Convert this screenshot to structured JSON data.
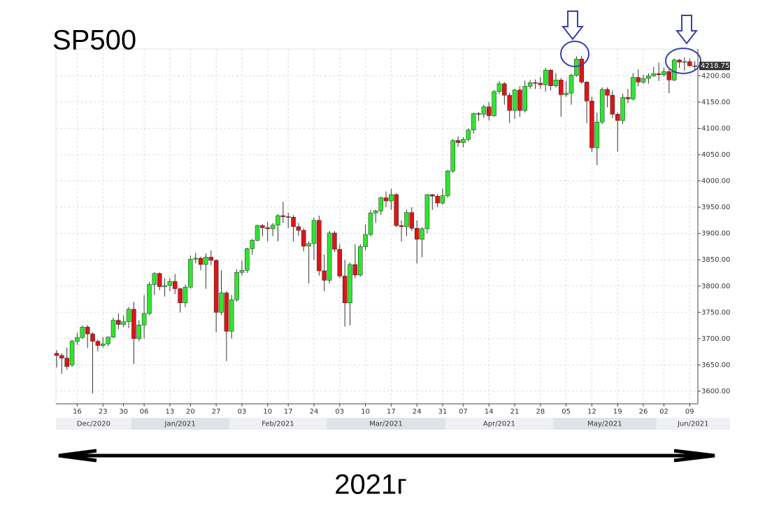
{
  "chart_data": {
    "type": "candlestick",
    "title": "SP500",
    "footer": "2021г",
    "x": [
      "2020-12-10",
      "2020-12-11",
      "2020-12-14",
      "2020-12-15",
      "2020-12-16",
      "2020-12-17",
      "2020-12-18",
      "2020-12-21",
      "2020-12-22",
      "2020-12-23",
      "2020-12-24",
      "2020-12-28",
      "2020-12-29",
      "2020-12-30",
      "2020-12-31",
      "2021-01-04",
      "2021-01-05",
      "2021-01-06",
      "2021-01-07",
      "2021-01-08",
      "2021-01-11",
      "2021-01-12",
      "2021-01-13",
      "2021-01-14",
      "2021-01-15",
      "2021-01-19",
      "2021-01-20",
      "2021-01-21",
      "2021-01-22",
      "2021-01-25",
      "2021-01-26",
      "2021-01-27",
      "2021-01-28",
      "2021-01-29",
      "2021-02-01",
      "2021-02-02",
      "2021-02-03",
      "2021-02-04",
      "2021-02-05",
      "2021-02-08",
      "2021-02-09",
      "2021-02-10",
      "2021-02-11",
      "2021-02-12",
      "2021-02-16",
      "2021-02-17",
      "2021-02-18",
      "2021-02-19",
      "2021-02-22",
      "2021-02-23",
      "2021-02-24",
      "2021-02-25",
      "2021-02-26",
      "2021-03-01",
      "2021-03-02",
      "2021-03-03",
      "2021-03-04",
      "2021-03-05",
      "2021-03-08",
      "2021-03-09",
      "2021-03-10",
      "2021-03-11",
      "2021-03-12",
      "2021-03-15",
      "2021-03-16",
      "2021-03-17",
      "2021-03-18",
      "2021-03-19",
      "2021-03-22",
      "2021-03-23",
      "2021-03-24",
      "2021-03-25",
      "2021-03-26",
      "2021-03-29",
      "2021-03-30",
      "2021-03-31",
      "2021-04-01",
      "2021-04-05",
      "2021-04-06",
      "2021-04-07",
      "2021-04-08",
      "2021-04-09",
      "2021-04-12",
      "2021-04-13",
      "2021-04-14",
      "2021-04-15",
      "2021-04-16",
      "2021-04-19",
      "2021-04-20",
      "2021-04-21",
      "2021-04-22",
      "2021-04-23",
      "2021-04-26",
      "2021-04-27",
      "2021-04-28",
      "2021-04-29",
      "2021-04-30",
      "2021-05-03",
      "2021-05-04",
      "2021-05-05",
      "2021-05-06",
      "2021-05-07",
      "2021-05-10",
      "2021-05-11",
      "2021-05-12",
      "2021-05-13",
      "2021-05-14",
      "2021-05-17",
      "2021-05-18",
      "2021-05-19",
      "2021-05-20",
      "2021-05-21",
      "2021-05-24",
      "2021-05-25",
      "2021-05-26",
      "2021-05-27",
      "2021-05-28",
      "2021-06-01",
      "2021-06-02",
      "2021-06-03",
      "2021-06-04",
      "2021-06-07",
      "2021-06-08",
      "2021-06-09",
      "2021-06-10"
    ],
    "open": [
      3672,
      3668,
      3663,
      3650,
      3695,
      3702,
      3722,
      3709,
      3695,
      3687,
      3690,
      3703,
      3735,
      3727,
      3732,
      3756,
      3700,
      3726,
      3748,
      3803,
      3824,
      3799,
      3801,
      3809,
      3795,
      3768,
      3798,
      3851,
      3853,
      3841,
      3855,
      3849,
      3750,
      3787,
      3714,
      3774,
      3826,
      3830,
      3871,
      3887,
      3915,
      3911,
      3909,
      3916,
      3934,
      3932,
      3931,
      3913,
      3906,
      3876,
      3881,
      3925,
      3829,
      3811,
      3901,
      3870,
      3819,
      3768,
      3841,
      3821,
      3875,
      3898,
      3939,
      3943,
      3968,
      3962,
      3974,
      3915,
      3913,
      3940,
      3910,
      3889,
      3909,
      3974,
      3971,
      3958,
      3972,
      4019,
      4077,
      4073,
      4079,
      4097,
      4128,
      4127,
      4141,
      4124,
      4170,
      4185,
      4163,
      4134,
      4173,
      4134,
      4180,
      4187,
      4186,
      4183,
      4211,
      4181,
      4192,
      4164,
      4167,
      4201,
      4232,
      4188,
      4152,
      4063,
      4112,
      4174,
      4163,
      4127,
      4115,
      4159,
      4156,
      4197,
      4188,
      4195,
      4200,
      4204,
      4202,
      4208,
      4192,
      4230,
      4226,
      4227,
      4219
    ],
    "high": [
      3678,
      3672,
      3683,
      3698,
      3711,
      3725,
      3726,
      3712,
      3698,
      3703,
      3704,
      3740,
      3748,
      3744,
      3760,
      3770,
      3735,
      3783,
      3808,
      3826,
      3826,
      3815,
      3815,
      3823,
      3797,
      3803,
      3858,
      3863,
      3856,
      3862,
      3868,
      3851,
      3830,
      3790,
      3783,
      3832,
      3848,
      3873,
      3890,
      3917,
      3918,
      3922,
      3920,
      3937,
      3960,
      3940,
      3935,
      3920,
      3910,
      3885,
      3930,
      3934,
      3860,
      3905,
      3905,
      3880,
      3850,
      3845,
      3880,
      3880,
      3917,
      3945,
      3945,
      3970,
      3980,
      3985,
      3977,
      3925,
      3945,
      3950,
      3925,
      3912,
      3975,
      3975,
      3975,
      3985,
      4021,
      4080,
      4085,
      4083,
      4100,
      4130,
      4131,
      4145,
      4150,
      4173,
      4190,
      4188,
      4168,
      4175,
      4180,
      4191,
      4192,
      4193,
      4198,
      4215,
      4212,
      4205,
      4196,
      4190,
      4204,
      4237,
      4238,
      4190,
      4160,
      4130,
      4178,
      4178,
      4172,
      4130,
      4166,
      4175,
      4205,
      4212,
      4202,
      4205,
      4217,
      4225,
      4215,
      4212,
      4233,
      4232,
      4235,
      4233,
      4228
    ],
    "low": [
      3645,
      3633,
      3641,
      3646,
      3688,
      3700,
      3682,
      3596,
      3676,
      3683,
      3686,
      3701,
      3718,
      3722,
      3720,
      3652,
      3695,
      3700,
      3745,
      3783,
      3792,
      3780,
      3790,
      3785,
      3750,
      3760,
      3795,
      3843,
      3830,
      3795,
      3840,
      3712,
      3745,
      3657,
      3700,
      3770,
      3820,
      3825,
      3860,
      3885,
      3895,
      3885,
      3895,
      3885,
      3920,
      3910,
      3885,
      3896,
      3866,
      3805,
      3850,
      3820,
      3790,
      3805,
      3865,
      3815,
      3723,
      3725,
      3815,
      3818,
      3868,
      3895,
      3920,
      3935,
      3950,
      3945,
      3912,
      3885,
      3895,
      3905,
      3843,
      3855,
      3900,
      3945,
      3950,
      3955,
      3968,
      4015,
      4065,
      4064,
      4075,
      4090,
      4114,
      4120,
      4115,
      4122,
      4165,
      4145,
      4110,
      4118,
      4122,
      4130,
      4175,
      4175,
      4175,
      4170,
      4172,
      4178,
      4122,
      4160,
      4145,
      4198,
      4185,
      4110,
      4055,
      4030,
      4108,
      4140,
      4120,
      4056,
      4108,
      4148,
      4153,
      4180,
      4185,
      4185,
      4198,
      4190,
      4198,
      4167,
      4190,
      4215,
      4210,
      4218,
      4212
    ],
    "close": [
      3668,
      3663,
      3647,
      3695,
      3702,
      3722,
      3709,
      3695,
      3687,
      3690,
      3703,
      3735,
      3727,
      3732,
      3756,
      3700,
      3726,
      3748,
      3803,
      3824,
      3799,
      3801,
      3809,
      3795,
      3768,
      3798,
      3851,
      3853,
      3841,
      3855,
      3849,
      3750,
      3787,
      3714,
      3774,
      3826,
      3830,
      3871,
      3887,
      3915,
      3911,
      3909,
      3916,
      3934,
      3932,
      3931,
      3913,
      3906,
      3876,
      3881,
      3925,
      3829,
      3811,
      3901,
      3870,
      3819,
      3768,
      3841,
      3821,
      3875,
      3898,
      3939,
      3943,
      3968,
      3962,
      3974,
      3915,
      3913,
      3940,
      3910,
      3889,
      3909,
      3974,
      3971,
      3958,
      3972,
      4019,
      4077,
      4073,
      4079,
      4097,
      4128,
      4127,
      4141,
      4124,
      4170,
      4185,
      4163,
      4134,
      4173,
      4134,
      4180,
      4187,
      4186,
      4183,
      4211,
      4181,
      4192,
      4164,
      4167,
      4201,
      4232,
      4188,
      4152,
      4063,
      4112,
      4174,
      4163,
      4127,
      4115,
      4159,
      4156,
      4197,
      4188,
      4195,
      4200,
      4204,
      4202,
      4208,
      4192,
      4230,
      4226,
      4227,
      4219,
      4218.75
    ],
    "up_color": "#2ee62e",
    "down_color": "#dd1515",
    "ylim": [
      3576,
      4251
    ],
    "yticks": [
      {
        "value": 3600,
        "label": "3600.00"
      },
      {
        "value": 3650,
        "label": "3650.00"
      },
      {
        "value": 3700,
        "label": "3700.00"
      },
      {
        "value": 3750,
        "label": "3750.00"
      },
      {
        "value": 3800,
        "label": "3800.00"
      },
      {
        "value": 3850,
        "label": "3850.00"
      },
      {
        "value": 3900,
        "label": "3900.00"
      },
      {
        "value": 3950,
        "label": "3950.00"
      },
      {
        "value": 4000,
        "label": "4000.00"
      },
      {
        "value": 4050,
        "label": "4050.00"
      },
      {
        "value": 4100,
        "label": "4100.00"
      },
      {
        "value": 4150,
        "label": "4150.00"
      },
      {
        "value": 4200,
        "label": "4200.00"
      }
    ],
    "xticks": [
      {
        "value": "2020-12-16",
        "label": "16"
      },
      {
        "value": "2020-12-23",
        "label": "23"
      },
      {
        "value": "2020-12-30",
        "label": "30"
      },
      {
        "value": "2021-01-06",
        "label": "06"
      },
      {
        "value": "2021-01-13",
        "label": "13"
      },
      {
        "value": "2021-01-20",
        "label": "20"
      },
      {
        "value": "2021-01-27",
        "label": "27"
      },
      {
        "value": "2021-02-03",
        "label": "03"
      },
      {
        "value": "2021-02-10",
        "label": "10"
      },
      {
        "value": "2021-02-17",
        "label": "17"
      },
      {
        "value": "2021-02-24",
        "label": "24"
      },
      {
        "value": "2021-03-03",
        "label": "03"
      },
      {
        "value": "2021-03-10",
        "label": "10"
      },
      {
        "value": "2021-03-17",
        "label": "17"
      },
      {
        "value": "2021-03-24",
        "label": "24"
      },
      {
        "value": "2021-03-31",
        "label": "31"
      },
      {
        "value": "2021-04-07",
        "label": "07"
      },
      {
        "value": "2021-04-14",
        "label": "14"
      },
      {
        "value": "2021-04-21",
        "label": "21"
      },
      {
        "value": "2021-04-28",
        "label": "28"
      },
      {
        "value": "2021-05-05",
        "label": "05"
      },
      {
        "value": "2021-05-12",
        "label": "12"
      },
      {
        "value": "2021-05-19",
        "label": "19"
      },
      {
        "value": "2021-05-26",
        "label": "26"
      },
      {
        "value": "2021-06-02",
        "label": "02"
      },
      {
        "value": "2021-06-09",
        "label": "09"
      }
    ],
    "months": [
      "Dec/2020",
      "Jan/2021",
      "Feb/2021",
      "Mar/2021",
      "Apr/2021",
      "May/2021",
      "Jun/2021"
    ],
    "grid": true
  }
}
